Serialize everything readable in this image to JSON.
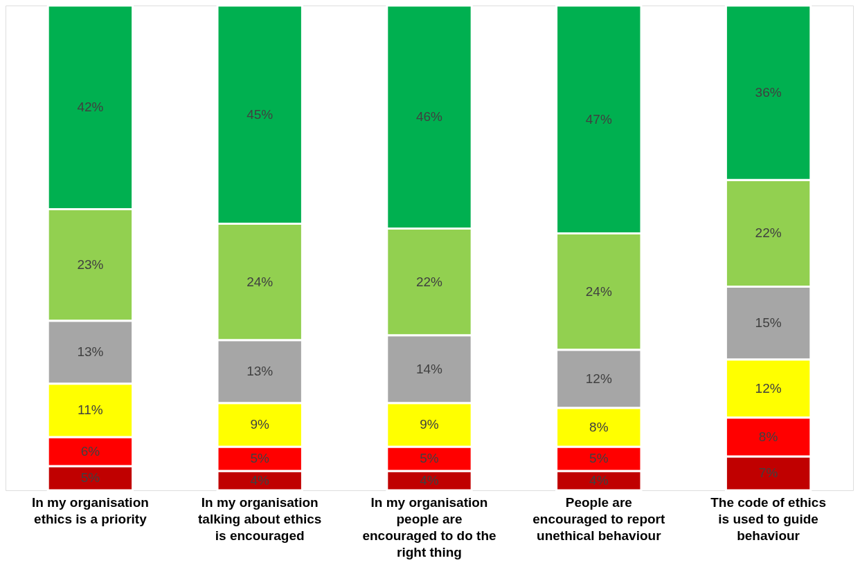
{
  "chart_data": {
    "type": "bar",
    "stacked": true,
    "tick_labels": "x",
    "categories": [
      "In my organisation ethics is a priority",
      "In my organisation talking about ethics is encouraged",
      "In my organisation people are encouraged to do the right thing",
      "People are encouraged to report unethical behaviour",
      "The code of ethics is used to guide behaviour"
    ],
    "series": [
      {
        "color": "#c00000",
        "values": [
          5,
          4,
          4,
          4,
          7
        ],
        "value_labels": [
          "5%",
          "4%",
          "4%",
          "4%",
          "7%"
        ]
      },
      {
        "color": "#ff0000",
        "values": [
          6,
          5,
          5,
          5,
          8
        ],
        "value_labels": [
          "6%",
          "5%",
          "5%",
          "5%",
          "8%"
        ]
      },
      {
        "color": "#ffff00",
        "values": [
          11,
          9,
          9,
          8,
          12
        ],
        "value_labels": [
          "11%",
          "9%",
          "9%",
          "8%",
          "12%"
        ]
      },
      {
        "color": "#a6a6a6",
        "values": [
          13,
          13,
          14,
          12,
          15
        ],
        "value_labels": [
          "13%",
          "13%",
          "14%",
          "12%",
          "15%"
        ]
      },
      {
        "color": "#92d050",
        "values": [
          23,
          24,
          22,
          24,
          22
        ],
        "value_labels": [
          "23%",
          "24%",
          "22%",
          "24%",
          "22%"
        ]
      },
      {
        "color": "#00b050",
        "values": [
          42,
          45,
          46,
          47,
          36
        ],
        "value_labels": [
          "42%",
          "45%",
          "46%",
          "47%",
          "36%"
        ]
      }
    ]
  }
}
